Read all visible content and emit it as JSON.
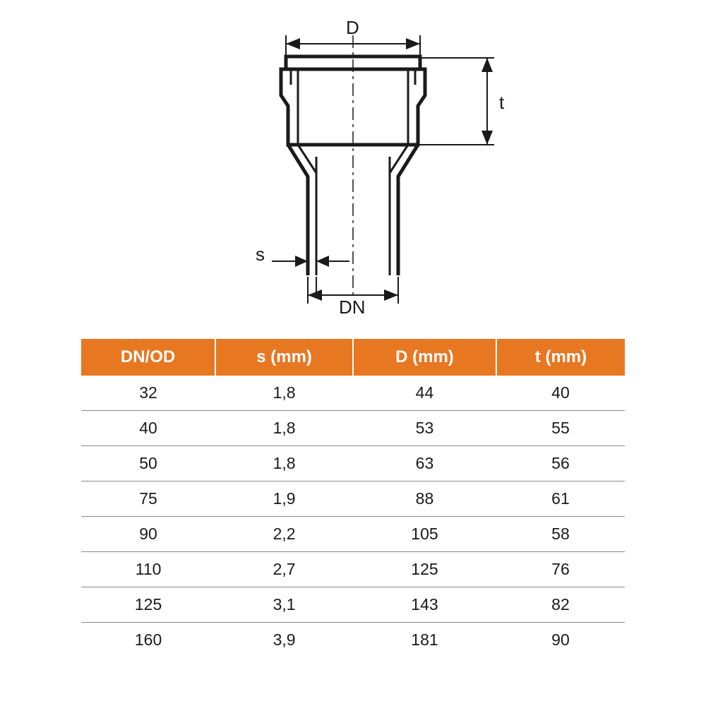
{
  "diagram": {
    "labels": {
      "D": "D",
      "t": "t",
      "s": "s",
      "DN": "DN"
    },
    "colors": {
      "outline": "#1a1a1a",
      "centerline": "#1a1a1a",
      "bg": "#ffffff"
    }
  },
  "table": {
    "header_bg": "#e87722",
    "header_fg": "#ffffff",
    "border_color": "#888888",
    "text_color": "#1a1a1a",
    "columns": [
      "DN/OD",
      "s (mm)",
      "D (mm)",
      "t (mm)"
    ],
    "rows": [
      [
        "32",
        "1,8",
        "44",
        "40"
      ],
      [
        "40",
        "1,8",
        "53",
        "55"
      ],
      [
        "50",
        "1,8",
        "63",
        "56"
      ],
      [
        "75",
        "1,9",
        "88",
        "61"
      ],
      [
        "90",
        "2,2",
        "105",
        "58"
      ],
      [
        "110",
        "2,7",
        "125",
        "76"
      ],
      [
        "125",
        "3,1",
        "143",
        "82"
      ],
      [
        "160",
        "3,9",
        "181",
        "90"
      ]
    ]
  }
}
